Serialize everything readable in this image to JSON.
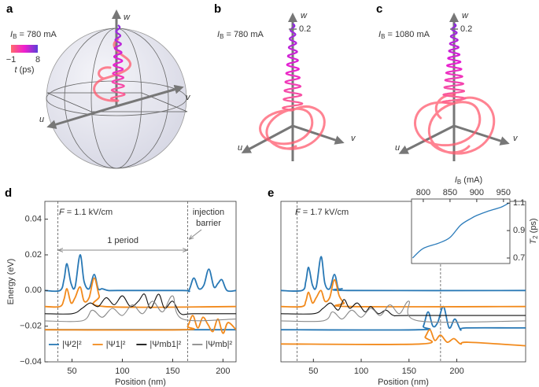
{
  "panel_labels": [
    "a",
    "b",
    "c",
    "d",
    "e"
  ],
  "spheres": [
    {
      "current": {
        "symbol": "I",
        "sub": "B",
        "text": " = 780 mA"
      },
      "axes": [
        "w",
        "u",
        "v"
      ],
      "colorbar": {
        "ticks": [
          {
            "value": -1,
            "label": "−1"
          },
          8
        ],
        "label": {
          "symbol": "t",
          "text": " (ps)"
        },
        "colors": [
          "#ff6b6b",
          "#f01ecf",
          "#5a3fd8"
        ]
      }
    },
    {
      "current": {
        "symbol": "I",
        "sub": "B",
        "text": " = 780 mA"
      },
      "axes": [
        "w",
        "u",
        "v"
      ],
      "scale": 0.2
    },
    {
      "current": {
        "symbol": "I",
        "sub": "B",
        "text": " = 1080 mA"
      },
      "axes": [
        "w",
        "u",
        "v"
      ],
      "scale": 0.2
    }
  ],
  "chart_data": [
    {
      "type": "line",
      "xlabel": "Position (nm)",
      "ylabel": "Energy (eV)",
      "xlim": [
        23,
        213
      ],
      "ylim": [
        -0.04,
        0.05
      ],
      "xticks": [
        50,
        100,
        150,
        200
      ],
      "yticks": [
        {
          "value": -0.04,
          "label": "−0.04"
        },
        {
          "value": -0.02,
          "label": "−0.02"
        },
        {
          "value": 0,
          "label": "0.00"
        },
        0.02,
        0.04
      ],
      "legend": "lower left",
      "markers": [
        36,
        165
      ],
      "field": {
        "symbol": "F",
        "text": " = 1.1 kV/cm"
      },
      "period_label": "1 period",
      "barrier_label": [
        "injection",
        "barrier"
      ],
      "series": [
        {
          "name": "|Ψ2|²",
          "color": "#2878b5",
          "x": [
            23,
            38,
            42,
            45,
            49,
            53,
            58,
            62,
            67,
            72,
            76,
            80,
            86,
            95,
            160,
            166,
            171,
            176,
            181,
            186,
            191,
            195,
            199,
            204,
            213,
            213,
            23,
            213
          ],
          "values": [
            0,
            0,
            0.006,
            0.015,
            0.004,
            0.002,
            0.02,
            0.005,
            0.001,
            0.009,
            0.001,
            0.001,
            0,
            0,
            0,
            0,
            0.007,
            0.001,
            0.003,
            0.012,
            0.002,
            0.004,
            0.006,
            0,
            0,
            null,
            -0.022,
            -0.022
          ]
        },
        {
          "name": "|Ψ1|²",
          "color": "#f28a1c",
          "x": [
            23,
            38,
            42,
            45,
            49,
            53,
            58,
            62,
            67,
            72,
            77,
            82,
            213,
            213,
            23,
            160,
            165,
            170,
            175,
            180,
            185,
            190,
            195,
            200,
            205,
            213
          ],
          "values": [
            -0.009,
            -0.009,
            -0.005,
            0.001,
            -0.007,
            -0.004,
            0.002,
            -0.006,
            -0.004,
            0.007,
            -0.003,
            -0.009,
            -0.009,
            null,
            -0.022,
            -0.022,
            -0.02,
            -0.014,
            -0.021,
            -0.015,
            -0.019,
            -0.023,
            -0.016,
            -0.024,
            -0.018,
            -0.022
          ]
        },
        {
          "name": "|Ψmb1|²",
          "color": "#111111",
          "x": [
            23,
            50,
            60,
            68,
            76,
            84,
            92,
            100,
            108,
            116,
            122,
            128,
            136,
            142,
            150,
            158,
            170,
            213
          ],
          "values": [
            -0.013,
            -0.013,
            -0.01,
            -0.007,
            -0.009,
            -0.004,
            -0.008,
            -0.003,
            -0.009,
            -0.006,
            -0.002,
            -0.01,
            -0.002,
            -0.01,
            -0.006,
            -0.013,
            -0.013,
            -0.013
          ]
        },
        {
          "name": "|Ψmb|²",
          "color": "#8a8a8a",
          "x": [
            23,
            60,
            70,
            80,
            90,
            100,
            110,
            120,
            130,
            140,
            150,
            160,
            213
          ],
          "values": [
            -0.017,
            -0.017,
            -0.011,
            -0.015,
            -0.01,
            -0.014,
            -0.008,
            -0.013,
            -0.006,
            -0.012,
            -0.003,
            -0.016,
            -0.016
          ]
        }
      ]
    },
    {
      "type": "line",
      "xlabel": "Position (nm)",
      "xlim": [
        16,
        272
      ],
      "ylim": [
        -0.04,
        0.05
      ],
      "xticks": [
        50,
        100,
        150,
        200
      ],
      "markers": [
        33,
        183
      ],
      "field": {
        "symbol": "F",
        "text": " = 1.7 kV/cm"
      },
      "series": [
        {
          "color": "#2878b5",
          "x": [
            16,
            38,
            42,
            45,
            49,
            53,
            58,
            62,
            67,
            72,
            76,
            80,
            86,
            272,
            272,
            16,
            160,
            165,
            170,
            175,
            180,
            186,
            192,
            198,
            204,
            210,
            272
          ],
          "values": [
            0,
            0,
            0.005,
            0.013,
            0.003,
            0.002,
            0.019,
            0.004,
            0.001,
            0.009,
            0.001,
            0.001,
            0,
            0,
            null,
            -0.022,
            -0.022,
            -0.02,
            -0.012,
            -0.02,
            -0.018,
            -0.009,
            -0.021,
            -0.016,
            -0.022,
            -0.021,
            -0.021
          ]
        },
        {
          "color": "#f28a1c",
          "x": [
            16,
            38,
            42,
            45,
            49,
            53,
            58,
            62,
            67,
            72,
            77,
            82,
            88,
            272,
            272,
            16,
            162,
            167,
            172,
            177,
            183,
            190,
            197,
            204,
            212,
            272
          ],
          "values": [
            -0.009,
            -0.009,
            -0.006,
            -0.001,
            -0.007,
            -0.004,
            0.0,
            -0.006,
            -0.004,
            0.006,
            -0.003,
            -0.007,
            -0.009,
            -0.009,
            null,
            -0.03,
            -0.03,
            -0.026,
            -0.022,
            -0.028,
            -0.025,
            -0.029,
            -0.027,
            -0.03,
            -0.029,
            -0.031
          ]
        },
        {
          "color": "#111111",
          "x": [
            16,
            50,
            60,
            68,
            76,
            82,
            88,
            96,
            104,
            110,
            118,
            126,
            134,
            150,
            272
          ],
          "values": [
            -0.013,
            -0.013,
            -0.01,
            -0.007,
            -0.011,
            -0.005,
            -0.01,
            -0.007,
            -0.012,
            -0.009,
            -0.013,
            -0.011,
            -0.014,
            -0.014,
            -0.014
          ]
        },
        {
          "color": "#8a8a8a",
          "x": [
            16,
            60,
            70,
            80,
            90,
            100,
            110,
            120,
            130,
            140,
            150,
            160,
            272
          ],
          "values": [
            -0.017,
            -0.017,
            -0.012,
            -0.016,
            -0.011,
            -0.015,
            -0.01,
            -0.014,
            -0.008,
            -0.013,
            -0.006,
            -0.017,
            -0.017
          ]
        }
      ]
    },
    {
      "type": "line",
      "xlabel": {
        "symbol": "I",
        "sub": "B",
        "text": " (mA)"
      },
      "ylabel": {
        "symbol": "T",
        "sub": "2",
        "text": " (ps)"
      },
      "x_axis_side": "top",
      "y_axis_side": "right",
      "xlim": [
        778,
        962
      ],
      "ylim": [
        0.66,
        1.13
      ],
      "xticks": [
        800,
        850,
        900,
        950
      ],
      "yticks": [
        0.7,
        0.9,
        1.1
      ],
      "series": [
        {
          "color": "#2b7bba",
          "x": [
            780,
            800,
            830,
            850,
            870,
            890,
            900,
            920,
            945,
            960
          ],
          "values": [
            0.7,
            0.77,
            0.81,
            0.85,
            0.94,
            0.99,
            1.01,
            1.04,
            1.07,
            1.1
          ]
        }
      ]
    }
  ]
}
